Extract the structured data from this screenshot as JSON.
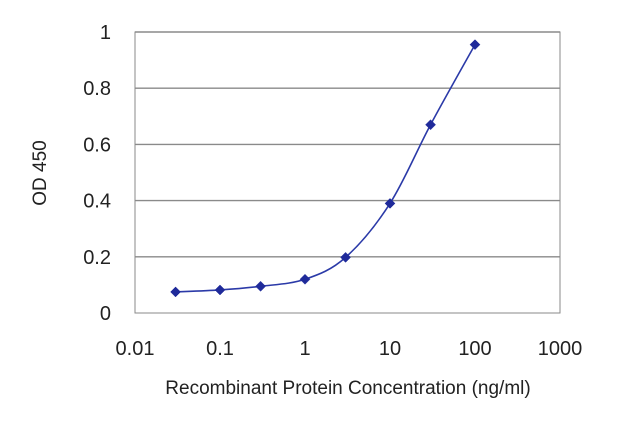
{
  "chart_data": {
    "type": "line",
    "xlabel": "Recombinant Protein Concentration (ng/ml)",
    "ylabel": "OD 450",
    "xscale": "log",
    "xlim": [
      0.01,
      1000
    ],
    "ylim": [
      0,
      1
    ],
    "xticks": [
      0.01,
      0.1,
      1,
      10,
      100,
      1000
    ],
    "xtick_labels": [
      "0.01",
      "0.1",
      "1",
      "10",
      "100",
      "1000"
    ],
    "yticks": [
      0,
      0.2,
      0.4,
      0.6,
      0.8,
      1
    ],
    "ytick_labels": [
      "0",
      "0.2",
      "0.4",
      "0.6",
      "0.8",
      "1"
    ],
    "grid": "horizontal",
    "series": [
      {
        "x": [
          0.03,
          0.1,
          0.3,
          1,
          3,
          10,
          30,
          100
        ],
        "y": [
          0.075,
          0.082,
          0.095,
          0.12,
          0.198,
          0.39,
          0.67,
          0.955
        ],
        "color": "#1f2a9a"
      }
    ]
  }
}
